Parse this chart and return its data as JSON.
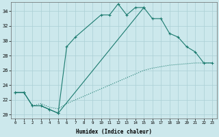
{
  "xlabel": "Humidex (Indice chaleur)",
  "bg_color": "#cce8ec",
  "grid_color": "#aacfd4",
  "line_color": "#1a7a6e",
  "xlim": [
    -0.5,
    23.5
  ],
  "ylim": [
    19.5,
    35.2
  ],
  "yticks": [
    20,
    22,
    24,
    26,
    28,
    30,
    32,
    34
  ],
  "xticks": [
    0,
    1,
    2,
    3,
    4,
    5,
    6,
    7,
    8,
    9,
    10,
    11,
    12,
    13,
    14,
    15,
    16,
    17,
    18,
    19,
    20,
    21,
    22,
    23
  ],
  "curve1_x": [
    0,
    1,
    2,
    3,
    4,
    5,
    6,
    7,
    10,
    11,
    12,
    13,
    14,
    15
  ],
  "curve1_y": [
    23.0,
    23.0,
    21.2,
    21.2,
    20.7,
    20.2,
    29.2,
    30.5,
    33.5,
    33.5,
    35.0,
    33.5,
    34.5,
    34.5
  ],
  "curve2_x": [
    0,
    1,
    2,
    3,
    4,
    5,
    15,
    16,
    17,
    18,
    19,
    20,
    21,
    22,
    23
  ],
  "curve2_y": [
    23.0,
    23.0,
    21.2,
    21.2,
    20.7,
    20.2,
    34.5,
    33.0,
    33.0,
    31.0,
    30.5,
    29.2,
    28.5,
    27.0,
    27.0
  ],
  "curve3_x": [
    2,
    3,
    4,
    5,
    6,
    7,
    8,
    9,
    10,
    11,
    12,
    13,
    14,
    15,
    16,
    17,
    18,
    19,
    20,
    21,
    22,
    23
  ],
  "curve3_y": [
    21.2,
    21.5,
    21.0,
    20.8,
    21.5,
    22.0,
    22.5,
    23.0,
    23.5,
    24.0,
    24.5,
    25.0,
    25.5,
    26.0,
    26.3,
    26.5,
    26.7,
    26.8,
    26.9,
    27.0,
    27.0,
    27.0
  ]
}
